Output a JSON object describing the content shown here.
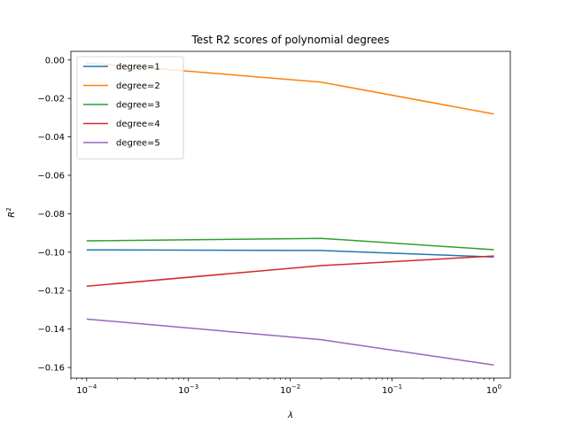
{
  "chart_data": {
    "type": "line",
    "title": "Test R2 scores of polynomial degrees",
    "xlabel": "λ",
    "ylabel": "R",
    "ylabel_sup": "2",
    "xscale": "log",
    "xlim": [
      7e-05,
      1.45
    ],
    "ylim": [
      -0.1655,
      0.0045
    ],
    "x": [
      0.0001,
      0.02,
      1.0
    ],
    "x_ticks": [
      {
        "value": 0.0001,
        "base": "10",
        "exp": "−4"
      },
      {
        "value": 0.001,
        "base": "10",
        "exp": "−3"
      },
      {
        "value": 0.01,
        "base": "10",
        "exp": "−2"
      },
      {
        "value": 0.1,
        "base": "10",
        "exp": "−1"
      },
      {
        "value": 1.0,
        "base": "10",
        "exp": "0"
      }
    ],
    "y_ticks": [
      {
        "value": 0.0,
        "label": "0.00"
      },
      {
        "value": -0.02,
        "label": "−0.02"
      },
      {
        "value": -0.04,
        "label": "−0.04"
      },
      {
        "value": -0.06,
        "label": "−0.06"
      },
      {
        "value": -0.08,
        "label": "−0.08"
      },
      {
        "value": -0.1,
        "label": "−0.10"
      },
      {
        "value": -0.12,
        "label": "−0.12"
      },
      {
        "value": -0.14,
        "label": "−0.14"
      },
      {
        "value": -0.16,
        "label": "−0.16"
      }
    ],
    "legend_position": "upper left",
    "grid": false,
    "series": [
      {
        "name": "degree=1",
        "color": "#1f77b4",
        "values": [
          -0.0988,
          -0.0991,
          -0.1025
        ]
      },
      {
        "name": "degree=2",
        "color": "#ff7f0e",
        "values": [
          -0.0015,
          -0.0115,
          -0.0281
        ]
      },
      {
        "name": "degree=3",
        "color": "#2ca02c",
        "values": [
          -0.0941,
          -0.0928,
          -0.0987
        ]
      },
      {
        "name": "degree=4",
        "color": "#d62728",
        "values": [
          -0.1177,
          -0.107,
          -0.102
        ]
      },
      {
        "name": "degree=5",
        "color": "#9467bd",
        "values": [
          -0.1348,
          -0.1455,
          -0.1587
        ]
      }
    ]
  }
}
